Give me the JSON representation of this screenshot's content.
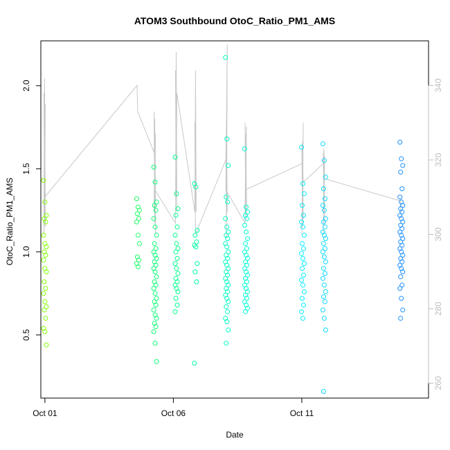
{
  "chart_data": {
    "type": "scatter",
    "title": "ATOM3 Southbound OtoC_Ratio_PM1_AMS",
    "xlabel": "Date",
    "ylabel": "OtoC_Ratio_PM1_AMS",
    "x_ticks": [
      "Oct 01",
      "Oct 06",
      "Oct 11"
    ],
    "y_ticks": [
      "0.5",
      "1.0",
      "1.5",
      "2.0"
    ],
    "y2_ticks": [
      "260",
      "280",
      "300",
      "320",
      "340"
    ],
    "xlim": [
      "2016-09-30T20:12",
      "2016-10-15T22:24"
    ],
    "ylim": [
      0.12,
      2.27
    ],
    "y2lim": [
      256,
      352
    ],
    "grid": false,
    "colors": {
      "line": "#c8c8c8",
      "axis": "#000000",
      "y2_axis": "#bdbdbd",
      "points_start": "#7fff00",
      "points_mid": "#00ff7f",
      "points_cyan": "#00ffff",
      "points_end": "#1e90ff"
    },
    "series": [
      {
        "type": "points",
        "axis": "left",
        "clusters": [
          {
            "x": "2016-10-01T00:00",
            "y": [
              1.43,
              1.3,
              1.22,
              1.2,
              1.18,
              1.1,
              1.05,
              1.03,
              1.0,
              0.98,
              0.95,
              0.9,
              0.88,
              0.82,
              0.78,
              0.75,
              0.7,
              0.67,
              0.65,
              0.6,
              0.54,
              0.52,
              0.44
            ]
          },
          {
            "x": "2016-10-04T15:00",
            "y": [
              1.32,
              1.27,
              1.25,
              1.23,
              1.2,
              1.18,
              1.1,
              1.05,
              0.97,
              0.95,
              0.93,
              0.91
            ]
          },
          {
            "x": "2016-10-05T07:00",
            "y": [
              1.51,
              1.42,
              1.3,
              1.28,
              1.25,
              1.2,
              1.15,
              1.1,
              1.05,
              1.02,
              1.0,
              0.98,
              0.96,
              0.94,
              0.92,
              0.9,
              0.88,
              0.85,
              0.82,
              0.8,
              0.78,
              0.75,
              0.72,
              0.7,
              0.68,
              0.65,
              0.62,
              0.6,
              0.57,
              0.55,
              0.52,
              0.45,
              0.34
            ]
          },
          {
            "x": "2016-10-06T03:00",
            "y": [
              1.57,
              1.35,
              1.26,
              1.22,
              1.15,
              1.1,
              1.05,
              1.02,
              1.0,
              0.96,
              0.93,
              0.9,
              0.87,
              0.84,
              0.82,
              0.8,
              0.78,
              0.76,
              0.72,
              0.68,
              0.64
            ]
          },
          {
            "x": "2016-10-06T21:00",
            "y": [
              1.41,
              1.39,
              1.13,
              1.1,
              1.06,
              1.04,
              1.03,
              0.93,
              0.88,
              0.82,
              0.33
            ]
          },
          {
            "x": "2016-10-08T02:00",
            "y": [
              2.17,
              1.68,
              1.52,
              1.33,
              1.3,
              1.2,
              1.15,
              1.12,
              1.1,
              1.08,
              1.05,
              1.03,
              1.0,
              0.98,
              0.96,
              0.94,
              0.92,
              0.9,
              0.88,
              0.86,
              0.84,
              0.82,
              0.8,
              0.78,
              0.76,
              0.74,
              0.72,
              0.7,
              0.67,
              0.64,
              0.6,
              0.58,
              0.53,
              0.45
            ]
          },
          {
            "x": "2016-10-08T20:00",
            "y": [
              1.62,
              1.27,
              1.24,
              1.22,
              1.2,
              1.16,
              1.12,
              1.08,
              1.05,
              1.02,
              1.0,
              0.98,
              0.96,
              0.94,
              0.92,
              0.9,
              0.88,
              0.86,
              0.84,
              0.82,
              0.8,
              0.78,
              0.76,
              0.74,
              0.72,
              0.7,
              0.68,
              0.66,
              0.64
            ]
          },
          {
            "x": "2016-10-11T01:00",
            "y": [
              1.63,
              1.41,
              1.35,
              1.28,
              1.22,
              1.18,
              1.15,
              1.1,
              1.05,
              1.02,
              0.99,
              0.96,
              0.93,
              0.9,
              0.86,
              0.83,
              0.8,
              0.76,
              0.72,
              0.68,
              0.64,
              0.6
            ]
          },
          {
            "x": "2016-10-11T21:00",
            "y": [
              1.65,
              1.55,
              1.45,
              1.38,
              1.32,
              1.28,
              1.25,
              1.2,
              1.18,
              1.15,
              1.12,
              1.1,
              1.08,
              1.05,
              1.02,
              1.0,
              0.97,
              0.94,
              0.9,
              0.87,
              0.84,
              0.8,
              0.76,
              0.73,
              0.7,
              0.65,
              0.6,
              0.53,
              0.16
            ]
          },
          {
            "x": "2016-10-14T21:00",
            "y": [
              1.66,
              1.56,
              1.52,
              1.48,
              1.38,
              1.33,
              1.3,
              1.28,
              1.26,
              1.24,
              1.22,
              1.2,
              1.18,
              1.16,
              1.14,
              1.12,
              1.1,
              1.08,
              1.06,
              1.04,
              1.02,
              1.0,
              0.98,
              0.96,
              0.94,
              0.92,
              0.9,
              0.88,
              0.85,
              0.8,
              0.78,
              0.72,
              0.65,
              0.6
            ]
          }
        ]
      },
      {
        "type": "line",
        "axis": "right",
        "note_units": "right axis",
        "segments": [
          {
            "x": "2016-10-01T00:00",
            "y": [
              305,
              342,
              302,
              338,
              306,
              335,
              308,
              330,
              310,
              300,
              310
            ]
          },
          {
            "x": "2016-10-04T15:00",
            "y": [
              340,
              333
            ]
          },
          {
            "x": "2016-10-05T07:00",
            "y": [
              322,
              331,
              309,
              333,
              303,
              327,
              306,
              331,
              300,
              329,
              312
            ]
          },
          {
            "x": "2016-10-06T03:00",
            "y": [
              303,
              349,
              306,
              344,
              310,
              338
            ]
          },
          {
            "x": "2016-10-06T21:00",
            "y": [
              306,
              344,
              306,
              330,
              300
            ]
          },
          {
            "x": "2016-10-08T02:00",
            "y": [
              320,
              332,
              306,
              322,
              299,
              351,
              312
            ]
          },
          {
            "x": "2016-10-08T20:00",
            "y": [
              303,
              327,
              304,
              326,
              306,
              329,
              305,
              327,
              309,
              330,
              312
            ]
          },
          {
            "x": "2016-10-11T01:00",
            "y": [
              319,
              325,
              304,
              324,
              302,
              330,
              300,
              322,
              314
            ]
          },
          {
            "x": "2016-10-11T21:00",
            "y": [
              319,
              323,
              303,
              322,
              306,
              321,
              300,
              315
            ]
          },
          {
            "x": "2016-10-14T21:00",
            "y": [
              309,
              305
            ]
          }
        ]
      }
    ]
  }
}
